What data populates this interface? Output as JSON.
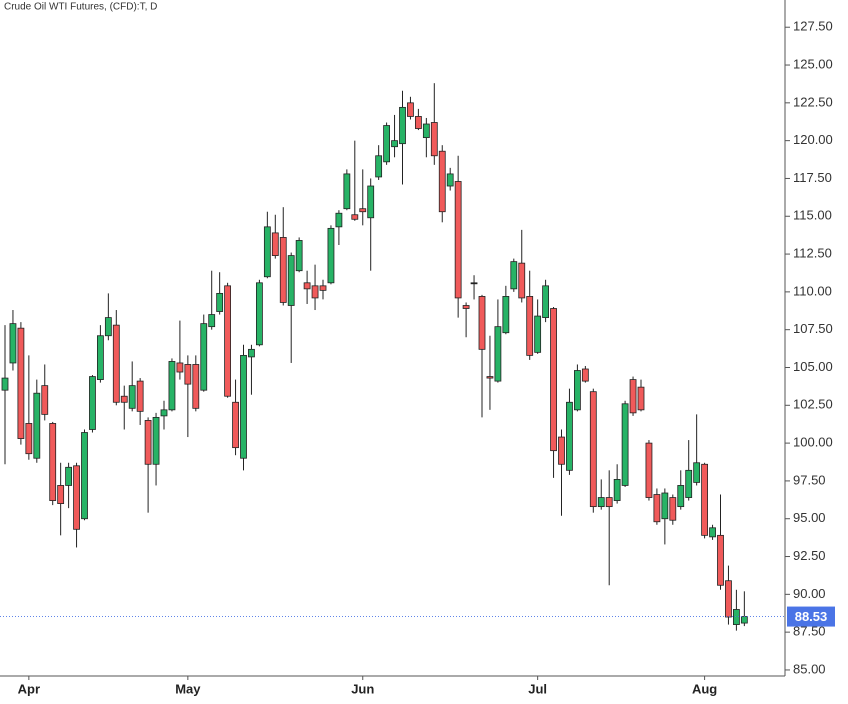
{
  "chart_data": {
    "type": "candlestick",
    "title": "Crude Oil WTI Futures, (CFD):T, D",
    "categories": [
      null,
      null,
      null,
      "Apr",
      null,
      null,
      null,
      null,
      null,
      null,
      null,
      null,
      null,
      null,
      null,
      null,
      null,
      null,
      null,
      null,
      null,
      null,
      null,
      "May",
      null,
      null,
      null,
      null,
      null,
      null,
      null,
      null,
      null,
      null,
      null,
      null,
      null,
      null,
      null,
      null,
      null,
      null,
      null,
      null,
      null,
      "Jun",
      null,
      null,
      null,
      null,
      null,
      null,
      null,
      null,
      null,
      null,
      null,
      null,
      null,
      null,
      null,
      null,
      null,
      null,
      null,
      null,
      null,
      "Jul",
      null,
      null,
      null,
      null,
      null,
      null,
      null,
      null,
      null,
      null,
      null,
      null,
      null,
      null,
      null,
      null,
      null,
      null,
      null,
      null,
      "Aug",
      null,
      null,
      null,
      null,
      null
    ],
    "open": [
      103.5,
      105.3,
      107.6,
      101.3,
      99.0,
      103.8,
      101.3,
      97.2,
      97.2,
      98.5,
      95.0,
      100.9,
      104.2,
      107.1,
      107.8,
      103.1,
      102.3,
      104.1,
      101.5,
      98.6,
      101.8,
      102.2,
      105.3,
      105.2,
      105.2,
      103.5,
      107.7,
      108.7,
      110.4,
      102.7,
      99.0,
      105.7,
      106.5,
      111.0,
      113.9,
      113.6,
      109.1,
      111.4,
      110.6,
      110.4,
      110.4,
      110.6,
      114.3,
      115.5,
      115.1,
      115.5,
      114.9,
      117.6,
      118.6,
      119.6,
      119.8,
      122.5,
      121.6,
      120.2,
      121.2,
      119.3,
      117.0,
      117.3,
      109.1,
      110.6,
      109.7,
      104.4,
      104.1,
      107.3,
      110.2,
      111.9,
      109.7,
      106.0,
      108.3,
      108.9,
      100.4,
      98.2,
      102.2,
      104.9,
      103.4,
      95.8,
      96.4,
      96.2,
      97.2,
      104.2,
      103.7,
      100.0,
      96.6,
      95.0,
      96.4,
      95.8,
      96.4,
      97.4,
      98.6,
      93.8,
      93.9,
      90.9,
      88.0,
      88.1
    ],
    "high": [
      107.8,
      108.8,
      108.0,
      105.8,
      104.2,
      105.2,
      101.4,
      98.7,
      98.7,
      98.7,
      100.9,
      104.5,
      107.8,
      109.9,
      108.8,
      103.8,
      105.4,
      104.3,
      101.7,
      102.0,
      102.8,
      105.6,
      108.1,
      105.8,
      105.8,
      108.5,
      111.4,
      111.3,
      110.6,
      104.2,
      106.5,
      106.5,
      110.8,
      115.3,
      115.1,
      115.6,
      112.6,
      113.6,
      111.4,
      111.8,
      110.8,
      114.4,
      115.4,
      118.1,
      120.0,
      118.1,
      117.5,
      119.7,
      121.2,
      121.7,
      123.3,
      122.9,
      122.1,
      121.5,
      123.8,
      119.7,
      118.2,
      119.0,
      109.3,
      111.1,
      109.8,
      107.1,
      109.5,
      110.4,
      112.2,
      114.1,
      111.4,
      109.5,
      110.8,
      109.0,
      100.9,
      103.6,
      105.2,
      105.1,
      103.6,
      97.6,
      98.2,
      98.6,
      102.8,
      104.4,
      104.2,
      100.2,
      97.0,
      97.0,
      96.6,
      98.2,
      100.2,
      101.9,
      98.7,
      94.6,
      96.6,
      91.9,
      90.3,
      90.2
    ],
    "low": [
      98.6,
      104.8,
      99.9,
      98.9,
      98.7,
      101.5,
      95.9,
      93.9,
      95.7,
      93.1,
      94.9,
      100.7,
      104.0,
      106.8,
      102.5,
      100.9,
      102.1,
      101.2,
      95.4,
      97.2,
      100.9,
      102.1,
      104.2,
      100.4,
      102.1,
      103.4,
      107.5,
      108.5,
      103.0,
      99.2,
      98.2,
      103.2,
      106.4,
      110.9,
      112.2,
      109.1,
      105.3,
      111.3,
      109.2,
      108.8,
      109.5,
      110.5,
      113.1,
      115.4,
      114.7,
      114.4,
      111.4,
      117.4,
      118.4,
      118.9,
      117.1,
      121.4,
      120.7,
      118.9,
      118.4,
      114.6,
      116.7,
      108.3,
      107.0,
      109.5,
      101.7,
      102.2,
      104.0,
      107.2,
      110.0,
      109.3,
      105.5,
      105.9,
      108.0,
      97.7,
      95.2,
      97.9,
      102.1,
      104.0,
      95.4,
      95.6,
      90.6,
      96.0,
      97.1,
      101.8,
      102.1,
      96.2,
      94.6,
      93.3,
      94.6,
      95.6,
      96.2,
      97.2,
      93.7,
      93.6,
      90.3,
      88.0,
      87.6,
      87.9
    ],
    "close": [
      104.3,
      107.9,
      100.3,
      99.3,
      103.3,
      101.9,
      96.2,
      96.0,
      98.4,
      94.3,
      100.7,
      104.4,
      107.1,
      108.3,
      102.7,
      102.7,
      103.8,
      102.1,
      98.6,
      101.7,
      102.2,
      105.4,
      104.7,
      103.9,
      102.3,
      107.9,
      108.5,
      109.9,
      103.1,
      99.7,
      105.8,
      106.2,
      110.6,
      114.3,
      112.4,
      109.3,
      112.4,
      113.4,
      110.2,
      109.6,
      110.1,
      114.2,
      115.2,
      117.8,
      114.8,
      115.3,
      117.0,
      119.0,
      121.0,
      120.0,
      122.2,
      121.6,
      120.8,
      121.1,
      119.0,
      115.3,
      117.8,
      109.6,
      108.9,
      110.6,
      106.2,
      104.3,
      107.7,
      109.7,
      112.0,
      109.6,
      105.8,
      108.4,
      110.4,
      99.5,
      98.6,
      102.7,
      104.8,
      104.1,
      95.8,
      96.4,
      95.8,
      97.6,
      102.6,
      102.0,
      102.2,
      96.4,
      94.8,
      96.7,
      94.9,
      97.2,
      98.2,
      98.7,
      93.9,
      94.4,
      90.6,
      88.5,
      89.0,
      88.53
    ],
    "up_color": "#27b366",
    "down_color": "#f05a5a",
    "last_price": 88.53,
    "last_price_color": "#4a74e6",
    "ylim": [
      84.6,
      129.3
    ],
    "yticks": [
      {
        "value": 85,
        "label": "85.00"
      },
      {
        "value": 87.5,
        "label": "87.50"
      },
      {
        "value": 90,
        "label": "90.00"
      },
      {
        "value": 92.5,
        "label": "92.50"
      },
      {
        "value": 95,
        "label": "95.00"
      },
      {
        "value": 97.5,
        "label": "97.50"
      },
      {
        "value": 100,
        "label": "100.00"
      },
      {
        "value": 102.5,
        "label": "102.50"
      },
      {
        "value": 105,
        "label": "105.00"
      },
      {
        "value": 107.5,
        "label": "107.50"
      },
      {
        "value": 110,
        "label": "110.00"
      },
      {
        "value": 112.5,
        "label": "112.50"
      },
      {
        "value": 115,
        "label": "115.00"
      },
      {
        "value": 117.5,
        "label": "117.50"
      },
      {
        "value": 120,
        "label": "120.00"
      },
      {
        "value": 122.5,
        "label": "122.50"
      },
      {
        "value": 125,
        "label": "125.00"
      },
      {
        "value": 127.5,
        "label": "127.50"
      }
    ],
    "grid": false
  }
}
